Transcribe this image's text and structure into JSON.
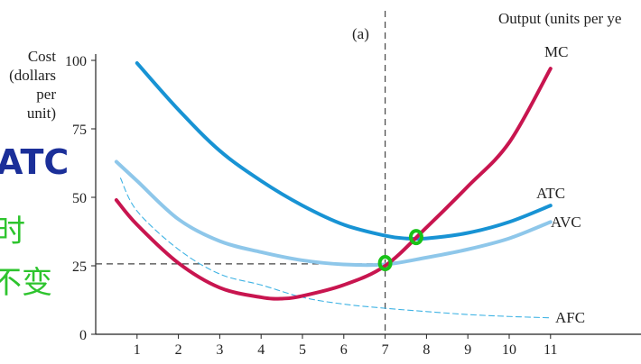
{
  "panel_label": "(a)",
  "top_right_label": "Output (units per ye",
  "handwriting": {
    "atc": "ATC",
    "note_line1": "时",
    "note_line2": "不变"
  },
  "chart_data": {
    "type": "line",
    "xlabel": "",
    "ylabel": [
      "Cost",
      "(dollars",
      "per",
      "unit)"
    ],
    "xlim": [
      0,
      11.5
    ],
    "ylim": [
      0,
      100
    ],
    "x_ticks": [
      1,
      2,
      3,
      4,
      5,
      6,
      7,
      8,
      9,
      10,
      11
    ],
    "y_ticks": [
      0,
      25,
      50,
      75,
      100
    ],
    "grid": false,
    "colors": {
      "MC": "#c8154f",
      "ATC": "#1893d4",
      "AVC": "#8ec7ea",
      "AFC": "#3fb3e4",
      "annotation": "#19c219",
      "guide": "#444444"
    },
    "series": [
      {
        "name": "MC",
        "style": "solid",
        "x": [
          0.5,
          1,
          2,
          3,
          4,
          4.5,
          5,
          6,
          7,
          8,
          9,
          10,
          11
        ],
        "y": [
          49,
          40,
          26,
          17,
          13.5,
          13,
          14,
          18,
          25,
          39,
          54,
          70,
          97
        ]
      },
      {
        "name": "ATC",
        "style": "solid",
        "x": [
          1,
          2,
          3,
          4,
          5,
          6,
          7,
          7.5,
          8,
          9,
          10,
          11
        ],
        "y": [
          99,
          82,
          67,
          56,
          47,
          40,
          36,
          35,
          35,
          37,
          41,
          47
        ]
      },
      {
        "name": "AVC",
        "style": "solid",
        "x": [
          0.5,
          1,
          2,
          3,
          4,
          5,
          6,
          7,
          8,
          9,
          10,
          11
        ],
        "y": [
          63,
          56,
          42,
          34,
          30,
          27,
          25.5,
          25.5,
          28,
          31,
          35,
          41
        ]
      },
      {
        "name": "AFC",
        "style": "dashed",
        "x": [
          0.6,
          1,
          2,
          3,
          4,
          5,
          6,
          7,
          8,
          9,
          10,
          11
        ],
        "y": [
          57,
          45,
          31,
          22,
          18,
          13.5,
          11,
          9.5,
          8.3,
          7.2,
          6.5,
          6
        ]
      }
    ],
    "guides": {
      "vertical_x": 7,
      "horizontal_y": 25.7
    },
    "marked_points": [
      {
        "x": 7,
        "y": 26
      },
      {
        "x": 7.75,
        "y": 35.5
      }
    ]
  }
}
